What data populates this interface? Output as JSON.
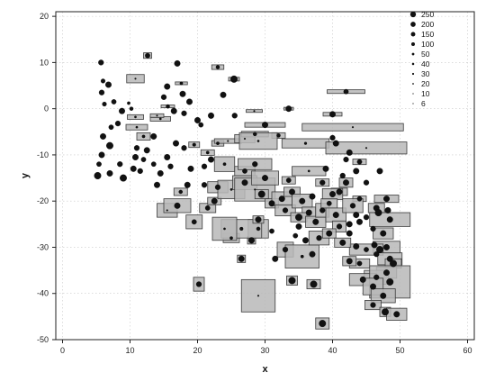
{
  "chart_data": {
    "type": "scatter",
    "title": "",
    "xlabel": "x",
    "ylabel": "y",
    "xlim": [
      -1,
      61
    ],
    "ylim": [
      -50,
      21
    ],
    "xticks": [
      0,
      10,
      20,
      30,
      40,
      50,
      60
    ],
    "yticks": [
      20,
      10,
      0,
      -10,
      -20,
      -30,
      -40,
      -50
    ],
    "xtick_labels": [
      "0",
      "10",
      "20",
      "30",
      "40",
      "50",
      "60"
    ],
    "ytick_labels": [
      "20",
      "10",
      "0",
      "-10",
      "-20",
      "-30",
      "-40",
      "-50"
    ],
    "grid": true,
    "legend": {
      "position": "top-right",
      "entries": [
        {
          "label": "250",
          "size": 250
        },
        {
          "label": "200",
          "size": 200
        },
        {
          "label": "150",
          "size": 150
        },
        {
          "label": "100",
          "size": 100
        },
        {
          "label": "50",
          "size": 50
        },
        {
          "label": "40",
          "size": 40
        },
        {
          "label": "30",
          "size": 30
        },
        {
          "label": "20",
          "size": 20
        },
        {
          "label": "10",
          "size": 10
        },
        {
          "label": "6",
          "size": 6
        }
      ]
    },
    "encoding": "Dot size = point size value; shaded rectangle = error extent in x and y around each point",
    "points": [
      {
        "x": 5.7,
        "y": 10,
        "size": 120
      },
      {
        "x": 6.0,
        "y": 6,
        "size": 80
      },
      {
        "x": 6.8,
        "y": 5.2,
        "size": 150
      },
      {
        "x": 5.8,
        "y": 3.5,
        "size": 120
      },
      {
        "x": 7.6,
        "y": 1.5,
        "size": 100
      },
      {
        "x": 6.2,
        "y": 1.0,
        "size": 80
      },
      {
        "x": 8.8,
        "y": -0.5,
        "size": 150
      },
      {
        "x": 9.8,
        "y": 1.2,
        "size": 40
      },
      {
        "x": 10.2,
        "y": 0.0,
        "size": 60
      },
      {
        "x": 8.2,
        "y": -3.2,
        "size": 120
      },
      {
        "x": 7.2,
        "y": -4.0,
        "size": 100
      },
      {
        "x": 6.0,
        "y": -6.0,
        "size": 150
      },
      {
        "x": 7.0,
        "y": -8.0,
        "size": 200
      },
      {
        "x": 5.8,
        "y": -10.0,
        "size": 150
      },
      {
        "x": 5.4,
        "y": -12.0,
        "size": 100
      },
      {
        "x": 5.2,
        "y": -14.5,
        "size": 200
      },
      {
        "x": 7.0,
        "y": -14.0,
        "size": 150
      },
      {
        "x": 8.5,
        "y": -12.0,
        "size": 120
      },
      {
        "x": 9.0,
        "y": -15.0,
        "size": 200
      },
      {
        "x": 10.5,
        "y": -13.0,
        "size": 150
      },
      {
        "x": 11.5,
        "y": -13.5,
        "size": 120
      },
      {
        "x": 10.8,
        "y": -10.5,
        "size": 150
      },
      {
        "x": 12.0,
        "y": -11.0,
        "size": 100
      },
      {
        "x": 12.5,
        "y": -9.0,
        "size": 150
      },
      {
        "x": 11.0,
        "y": -8.5,
        "size": 120
      },
      {
        "x": 13.5,
        "y": -6.0,
        "size": 150
      },
      {
        "x": 12.0,
        "y": -6.0,
        "size": 40,
        "xerr": 1.0,
        "yerr": 0.8
      },
      {
        "x": 11.0,
        "y": -4.0,
        "size": 20,
        "xerr": 1.6,
        "yerr": 0.6
      },
      {
        "x": 10.8,
        "y": -1.8,
        "size": 20,
        "xerr": 1.2,
        "yerr": 0.5
      },
      {
        "x": 14.5,
        "y": -2.2,
        "size": 20,
        "xerr": 1.5,
        "yerr": 0.5
      },
      {
        "x": 14.0,
        "y": -1.5,
        "size": 10,
        "xerr": 1.0,
        "yerr": 0.4
      },
      {
        "x": 10.8,
        "y": 6.5,
        "size": 10,
        "xerr": 1.3,
        "yerr": 0.9
      },
      {
        "x": 12.6,
        "y": 11.5,
        "size": 100,
        "xerr": 0.6,
        "yerr": 0.6
      },
      {
        "x": 15.5,
        "y": 4.8,
        "size": 150
      },
      {
        "x": 15.0,
        "y": 2.5,
        "size": 120
      },
      {
        "x": 15.6,
        "y": 0.5,
        "size": 60,
        "xerr": 1.0,
        "yerr": 0.3
      },
      {
        "x": 17.0,
        "y": 9.8,
        "size": 150
      },
      {
        "x": 17.6,
        "y": 5.5,
        "size": 40,
        "xerr": 0.9,
        "yerr": 0.3
      },
      {
        "x": 17.8,
        "y": 3.2,
        "size": 150
      },
      {
        "x": 16.5,
        "y": -0.5,
        "size": 150
      },
      {
        "x": 18.0,
        "y": -1.0,
        "size": 120
      },
      {
        "x": 18.8,
        "y": 1.5,
        "size": 150
      },
      {
        "x": 20.0,
        "y": -2.5,
        "size": 150
      },
      {
        "x": 20.5,
        "y": -3.5,
        "size": 100
      },
      {
        "x": 22.0,
        "y": -1.5,
        "size": 150
      },
      {
        "x": 23.0,
        "y": 9.0,
        "size": 60,
        "xerr": 0.9,
        "yerr": 0.5
      },
      {
        "x": 23.8,
        "y": 3.0,
        "size": 150
      },
      {
        "x": 25.4,
        "y": 6.4,
        "size": 200,
        "xerr": 0.8,
        "yerr": 0.4
      },
      {
        "x": 25.5,
        "y": -1.5,
        "size": 120
      },
      {
        "x": 28.4,
        "y": -0.5,
        "size": 10,
        "xerr": 1.2,
        "yerr": 0.3
      },
      {
        "x": 33.5,
        "y": 0.0,
        "size": 150,
        "xerr": 0.7,
        "yerr": 0.3
      },
      {
        "x": 40.0,
        "y": -1.2,
        "size": 150,
        "xerr": 1.4,
        "yerr": 0.4
      },
      {
        "x": 42.0,
        "y": 3.7,
        "size": 100,
        "xerr": 2.8,
        "yerr": 0.4
      },
      {
        "x": 16.8,
        "y": -7.5,
        "size": 150
      },
      {
        "x": 18.0,
        "y": -8.5,
        "size": 120
      },
      {
        "x": 15.5,
        "y": -10.5,
        "size": 150
      },
      {
        "x": 16.0,
        "y": -12.5,
        "size": 120
      },
      {
        "x": 14.5,
        "y": -14.0,
        "size": 150
      },
      {
        "x": 13.5,
        "y": -12.0,
        "size": 100
      },
      {
        "x": 14.0,
        "y": -16.5,
        "size": 150
      },
      {
        "x": 19.0,
        "y": -13.0,
        "size": 150
      },
      {
        "x": 21.0,
        "y": -12.5,
        "size": 120
      },
      {
        "x": 22.0,
        "y": -11.0,
        "size": 150
      },
      {
        "x": 18.5,
        "y": -16.5,
        "size": 150
      },
      {
        "x": 21.0,
        "y": -16.5,
        "size": 120
      },
      {
        "x": 19.5,
        "y": -7.8,
        "size": 50,
        "xerr": 0.8,
        "yerr": 0.6
      },
      {
        "x": 23.0,
        "y": -7.5,
        "size": 40,
        "xerr": 0.9,
        "yerr": 0.6
      },
      {
        "x": 21.5,
        "y": -9.5,
        "size": 40,
        "xerr": 1.0,
        "yerr": 0.6
      },
      {
        "x": 24.0,
        "y": -12.0,
        "size": 40,
        "xerr": 1.5,
        "yerr": 1.6
      },
      {
        "x": 24.5,
        "y": -7.0,
        "size": 10,
        "xerr": 2.0,
        "yerr": 0.5
      },
      {
        "x": 27.0,
        "y": -6.5,
        "size": 10,
        "xerr": 1.5,
        "yerr": 0.9
      },
      {
        "x": 30.0,
        "y": -3.5,
        "size": 150,
        "xerr": 3.0,
        "yerr": 0.5
      },
      {
        "x": 28.5,
        "y": -5.5,
        "size": 60,
        "xerr": 2.0,
        "yerr": 0.6
      },
      {
        "x": 32.0,
        "y": -5.8,
        "size": 60,
        "xerr": 1.0,
        "yerr": 0.6
      },
      {
        "x": 29.0,
        "y": -7.0,
        "size": 20,
        "xerr": 2.8,
        "yerr": 1.8
      },
      {
        "x": 36.0,
        "y": -7.5,
        "size": 30,
        "xerr": 3.5,
        "yerr": 1.0
      },
      {
        "x": 43.0,
        "y": -4.0,
        "size": 10,
        "xerr": 7.5,
        "yerr": 0.8
      },
      {
        "x": 45.0,
        "y": -8.5,
        "size": 10,
        "xerr": 6.0,
        "yerr": 1.3
      },
      {
        "x": 40.0,
        "y": -6.3,
        "size": 120
      },
      {
        "x": 40.5,
        "y": -7.5,
        "size": 150
      },
      {
        "x": 42.5,
        "y": -9.5,
        "size": 150
      },
      {
        "x": 42.0,
        "y": -11.0,
        "size": 120
      },
      {
        "x": 44.0,
        "y": -11.5,
        "size": 100,
        "xerr": 1.0,
        "yerr": 0.6
      },
      {
        "x": 39.0,
        "y": -13.0,
        "size": 150
      },
      {
        "x": 41.5,
        "y": -14.5,
        "size": 120
      },
      {
        "x": 43.5,
        "y": -13.5,
        "size": 150
      },
      {
        "x": 45.0,
        "y": -16.0,
        "size": 120
      },
      {
        "x": 41.0,
        "y": -18.0,
        "size": 150,
        "xerr": 1.2,
        "yerr": 0.8
      },
      {
        "x": 44.0,
        "y": -19.5,
        "size": 100,
        "xerr": 1.0,
        "yerr": 0.6
      },
      {
        "x": 47.0,
        "y": -13.5,
        "size": 150
      },
      {
        "x": 48.0,
        "y": -19.5,
        "size": 150,
        "xerr": 1.8,
        "yerr": 0.8
      },
      {
        "x": 46.5,
        "y": -21.5,
        "size": 150,
        "xerr": 1.2,
        "yerr": 1.0
      },
      {
        "x": 48.2,
        "y": -22.0,
        "size": 150
      },
      {
        "x": 46.8,
        "y": -22.5,
        "size": 200
      },
      {
        "x": 48.5,
        "y": -24.0,
        "size": 150,
        "xerr": 3.0,
        "yerr": 1.5
      },
      {
        "x": 45.0,
        "y": -23.5,
        "size": 120
      },
      {
        "x": 44.0,
        "y": -24.5,
        "size": 150
      },
      {
        "x": 43.5,
        "y": -23.0,
        "size": 150
      },
      {
        "x": 42.5,
        "y": -25.0,
        "size": 150
      },
      {
        "x": 46.0,
        "y": -26.0,
        "size": 120
      },
      {
        "x": 47.5,
        "y": -27.0,
        "size": 150,
        "xerr": 1.5,
        "yerr": 1.2
      },
      {
        "x": 46.2,
        "y": -29.5,
        "size": 150
      },
      {
        "x": 47.0,
        "y": -30.5,
        "size": 200
      },
      {
        "x": 48.0,
        "y": -30.0,
        "size": 150,
        "xerr": 2.0,
        "yerr": 1.3
      },
      {
        "x": 46.5,
        "y": -31.5,
        "size": 120
      },
      {
        "x": 45.0,
        "y": -30.5,
        "size": 100,
        "xerr": 2.5,
        "yerr": 1.2
      },
      {
        "x": 43.5,
        "y": -29.8,
        "size": 150
      },
      {
        "x": 44.0,
        "y": -33.5,
        "size": 100,
        "xerr": 1.5,
        "yerr": 1.0
      },
      {
        "x": 42.5,
        "y": -33.0,
        "size": 150,
        "xerr": 1.0,
        "yerr": 1.0
      },
      {
        "x": 48.5,
        "y": -32.5,
        "size": 150,
        "xerr": 1.8,
        "yerr": 1.3
      },
      {
        "x": 49.0,
        "y": -33.5,
        "size": 200,
        "xerr": 1.2,
        "yerr": 1.0
      },
      {
        "x": 48.0,
        "y": -35.5,
        "size": 150,
        "xerr": 1.5,
        "yerr": 1.2
      },
      {
        "x": 46.5,
        "y": -36.5,
        "size": 120,
        "xerr": 1.8,
        "yerr": 1.5
      },
      {
        "x": 44.5,
        "y": -37.0,
        "size": 150,
        "xerr": 2.0,
        "yerr": 1.3
      },
      {
        "x": 48.5,
        "y": -37.5,
        "size": 200,
        "xerr": 3.0,
        "yerr": 3.5
      },
      {
        "x": 46.0,
        "y": -38.5,
        "size": 150,
        "xerr": 1.5,
        "yerr": 1.8
      },
      {
        "x": 47.5,
        "y": -40.5,
        "size": 150,
        "xerr": 1.8,
        "yerr": 1.5
      },
      {
        "x": 46.0,
        "y": -42.5,
        "size": 120,
        "xerr": 1.2,
        "yerr": 1.0
      },
      {
        "x": 47.8,
        "y": -44.0,
        "size": 200,
        "xerr": 0.8,
        "yerr": 1.0
      },
      {
        "x": 49.5,
        "y": -44.5,
        "size": 150,
        "xerr": 1.5,
        "yerr": 1.3
      },
      {
        "x": 38.5,
        "y": -46.5,
        "size": 200,
        "xerr": 1.0,
        "yerr": 1.2
      },
      {
        "x": 37.2,
        "y": -38.0,
        "size": 200,
        "xerr": 1.0,
        "yerr": 1.0
      },
      {
        "x": 34.0,
        "y": -37.2,
        "size": 200,
        "xerr": 0.8,
        "yerr": 1.0
      },
      {
        "x": 29.0,
        "y": -40.5,
        "size": 6,
        "xerr": 2.5,
        "yerr": 3.5
      },
      {
        "x": 20.2,
        "y": -38.0,
        "size": 120,
        "xerr": 0.8,
        "yerr": 1.5
      },
      {
        "x": 26.5,
        "y": -32.5,
        "size": 150,
        "xerr": 0.6,
        "yerr": 0.8
      },
      {
        "x": 31.5,
        "y": -32.5,
        "size": 150
      },
      {
        "x": 33.0,
        "y": -30.5,
        "size": 120,
        "xerr": 1.2,
        "yerr": 1.6
      },
      {
        "x": 35.5,
        "y": -32.0,
        "size": 40,
        "xerr": 2.5,
        "yerr": 2.5
      },
      {
        "x": 37.0,
        "y": -31.5,
        "size": 150
      },
      {
        "x": 36.0,
        "y": -28.5,
        "size": 150
      },
      {
        "x": 38.0,
        "y": -28.0,
        "size": 120,
        "xerr": 1.5,
        "yerr": 1.5
      },
      {
        "x": 34.5,
        "y": -27.5,
        "size": 100
      },
      {
        "x": 35.0,
        "y": -25.5,
        "size": 150
      },
      {
        "x": 31.0,
        "y": -26.5,
        "size": 100
      },
      {
        "x": 28.0,
        "y": -28.5,
        "size": 150,
        "xerr": 0.6,
        "yerr": 0.8
      },
      {
        "x": 29.0,
        "y": -26.0,
        "size": 60,
        "xerr": 1.5,
        "yerr": 2.0
      },
      {
        "x": 25.0,
        "y": -28.0,
        "size": 40,
        "xerr": 1.2,
        "yerr": 1.0
      },
      {
        "x": 26.5,
        "y": -26.0,
        "size": 50,
        "xerr": 3.0,
        "yerr": 2.0
      },
      {
        "x": 24.0,
        "y": -26.0,
        "size": 20,
        "xerr": 1.8,
        "yerr": 2.5
      },
      {
        "x": 29.0,
        "y": -24.0,
        "size": 150,
        "xerr": 0.8,
        "yerr": 0.8
      },
      {
        "x": 19.5,
        "y": -24.5,
        "size": 100,
        "xerr": 1.2,
        "yerr": 1.5
      },
      {
        "x": 15.5,
        "y": -22.0,
        "size": 10,
        "xerr": 1.5,
        "yerr": 1.5
      },
      {
        "x": 17.0,
        "y": -21.0,
        "size": 150,
        "xerr": 2.0,
        "yerr": 1.5
      },
      {
        "x": 17.5,
        "y": -18.0,
        "size": 60,
        "xerr": 1.0,
        "yerr": 0.8
      },
      {
        "x": 21.5,
        "y": -21.5,
        "size": 100,
        "xerr": 1.2,
        "yerr": 1.0
      },
      {
        "x": 22.5,
        "y": -20.0,
        "size": 150,
        "xerr": 1.0,
        "yerr": 0.8
      },
      {
        "x": 23.0,
        "y": -17.0,
        "size": 120,
        "xerr": 1.5,
        "yerr": 1.2
      },
      {
        "x": 25.0,
        "y": -17.5,
        "size": 20,
        "xerr": 2.0,
        "yerr": 2.0
      },
      {
        "x": 27.0,
        "y": -16.0,
        "size": 150,
        "xerr": 1.8,
        "yerr": 1.5
      },
      {
        "x": 28.5,
        "y": -17.5,
        "size": 10,
        "xerr": 3.0,
        "yerr": 2.5
      },
      {
        "x": 27.0,
        "y": -13.5,
        "size": 100,
        "xerr": 1.5,
        "yerr": 1.0
      },
      {
        "x": 28.5,
        "y": -12.0,
        "size": 120,
        "xerr": 2.5,
        "yerr": 1.2
      },
      {
        "x": 30.0,
        "y": -15.0,
        "size": 150,
        "xerr": 2.0,
        "yerr": 1.5
      },
      {
        "x": 29.5,
        "y": -18.5,
        "size": 200,
        "xerr": 1.0,
        "yerr": 1.0
      },
      {
        "x": 31.0,
        "y": -20.5,
        "size": 150,
        "xerr": 1.0,
        "yerr": 1.0
      },
      {
        "x": 32.5,
        "y": -19.5,
        "size": 150,
        "xerr": 1.5,
        "yerr": 1.5
      },
      {
        "x": 33.5,
        "y": -15.5,
        "size": 100,
        "xerr": 1.0,
        "yerr": 0.8
      },
      {
        "x": 34.0,
        "y": -18.0,
        "size": 150,
        "xerr": 1.2,
        "yerr": 1.0
      },
      {
        "x": 33.0,
        "y": -22.0,
        "size": 120,
        "xerr": 1.5,
        "yerr": 1.2
      },
      {
        "x": 35.5,
        "y": -20.0,
        "size": 150,
        "xerr": 1.5,
        "yerr": 1.5
      },
      {
        "x": 36.5,
        "y": -22.5,
        "size": 150,
        "xerr": 1.0,
        "yerr": 1.2
      },
      {
        "x": 35.0,
        "y": -23.5,
        "size": 200,
        "xerr": 1.2,
        "yerr": 1.0
      },
      {
        "x": 37.5,
        "y": -24.5,
        "size": 150,
        "xerr": 1.5,
        "yerr": 1.2
      },
      {
        "x": 38.5,
        "y": -22.0,
        "size": 120,
        "xerr": 1.0,
        "yerr": 1.5
      },
      {
        "x": 36.5,
        "y": -13.5,
        "size": 20,
        "xerr": 2.5,
        "yerr": 1.0
      },
      {
        "x": 38.5,
        "y": -16.0,
        "size": 120,
        "xerr": 1.0,
        "yerr": 0.8
      },
      {
        "x": 40.0,
        "y": -18.5,
        "size": 150,
        "xerr": 1.5,
        "yerr": 1.2
      },
      {
        "x": 39.5,
        "y": -20.5,
        "size": 100,
        "xerr": 1.2,
        "yerr": 1.0
      },
      {
        "x": 40.5,
        "y": -23.0,
        "size": 150,
        "xerr": 1.5,
        "yerr": 1.5
      },
      {
        "x": 41.0,
        "y": -25.5,
        "size": 120,
        "xerr": 1.0,
        "yerr": 1.2
      },
      {
        "x": 39.5,
        "y": -27.0,
        "size": 150,
        "xerr": 1.0,
        "yerr": 1.0
      },
      {
        "x": 41.5,
        "y": -29.0,
        "size": 150,
        "xerr": 1.2,
        "yerr": 1.0
      },
      {
        "x": 42.5,
        "y": -27.0,
        "size": 150
      },
      {
        "x": 43.0,
        "y": -21.0,
        "size": 120,
        "xerr": 1.5,
        "yerr": 1.5
      },
      {
        "x": 42.0,
        "y": -16.0,
        "size": 150,
        "xerr": 1.0,
        "yerr": 1.0
      },
      {
        "x": 37.0,
        "y": -19.0,
        "size": 150
      }
    ]
  }
}
